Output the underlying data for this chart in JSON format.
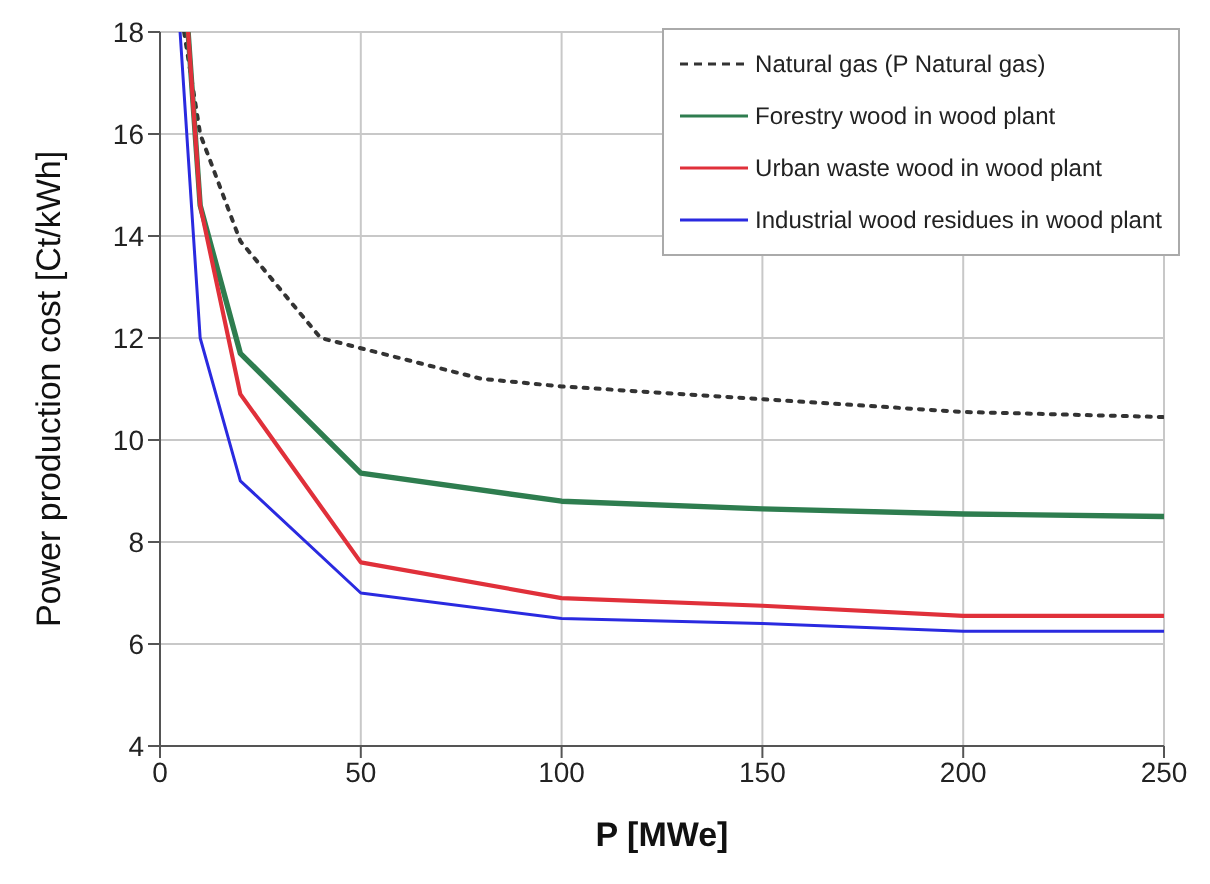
{
  "chart_data": {
    "type": "line",
    "xlabel": "P  [MWe]",
    "ylabel": "Power production cost  [Ct/kWh]",
    "xlim": [
      0,
      250
    ],
    "ylim": [
      4,
      18
    ],
    "xticks": [
      0,
      50,
      100,
      150,
      200,
      250
    ],
    "yticks": [
      4,
      6,
      8,
      10,
      12,
      14,
      16,
      18
    ],
    "grid": true,
    "legend": "top right",
    "marker": "none",
    "series": [
      {
        "name": "Natural gas (P Natural gas)",
        "color": "#333333",
        "line_style": "dotted",
        "x": [
          6,
          10,
          20,
          40,
          50,
          80,
          100,
          150,
          200,
          250
        ],
        "values": [
          18,
          16,
          13.9,
          12,
          11.8,
          11.2,
          11.05,
          10.8,
          10.55,
          10.45
        ]
      },
      {
        "name": "Forestry wood in wood plant",
        "color": "#2e7d4f",
        "line_style": "solid",
        "x": [
          7,
          10,
          20,
          50,
          100,
          150,
          200,
          250
        ],
        "values": [
          18,
          14.6,
          11.7,
          9.35,
          8.8,
          8.65,
          8.55,
          8.5
        ]
      },
      {
        "name": "Urban waste wood in wood plant",
        "color": "#e0303a",
        "line_style": "solid",
        "x": [
          7,
          10,
          20,
          50,
          100,
          150,
          200,
          250
        ],
        "values": [
          18,
          14.6,
          10.9,
          7.6,
          6.9,
          6.75,
          6.55,
          6.55
        ]
      },
      {
        "name": "Industrial wood residues in wood plant",
        "color": "#2a2ae0",
        "line_style": "solid",
        "x": [
          5,
          10,
          20,
          50,
          100,
          150,
          200,
          250
        ],
        "values": [
          18,
          12,
          9.2,
          7,
          6.5,
          6.4,
          6.25,
          6.25
        ]
      }
    ]
  }
}
